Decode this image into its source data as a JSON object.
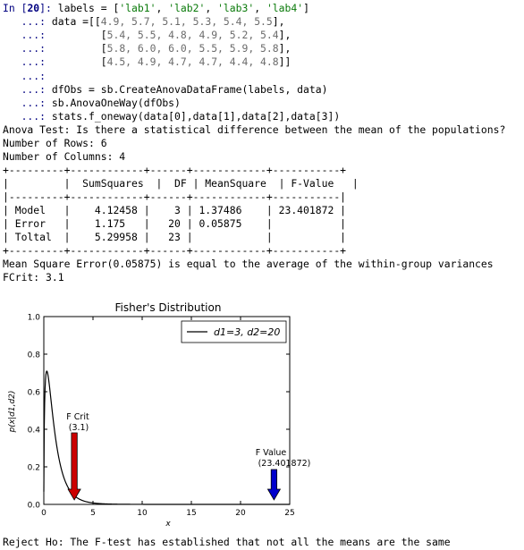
{
  "cell": {
    "prompt": "In [",
    "prompt_num": "20",
    "prompt_end": "]: ",
    "cont": "   ...: ",
    "code": {
      "l1_a": "labels = [",
      "l1_s1": "'lab1'",
      "l1_s2": "'lab2'",
      "l1_s3": "'lab3'",
      "l1_s4": "'lab4'",
      "l1_end": "]",
      "l2_a": "data =[[",
      "l2_nums": "4.9, 5.7, 5.1, 5.3, 5.4, 5.5",
      "l2_end": "],",
      "l3_a": "        [",
      "l3_nums": "5.4, 5.5, 4.8, 4.9, 5.2, 5.4",
      "l3_end": "],",
      "l4_a": "        [",
      "l4_nums": "5.8, 6.0, 6.0, 5.5, 5.9, 5.8",
      "l4_end": "],",
      "l5_a": "        [",
      "l5_nums": "4.5, 4.9, 4.7, 4.7, 4.4, 4.8",
      "l5_end": "]]",
      "l7": "dfObs = sb.CreateAnovaDataFrame(labels, data)",
      "l8": "sb.AnovaOneWay(dfObs)",
      "l9": "stats.f_oneway(data[0],data[1],data[2],data[3])"
    }
  },
  "output": {
    "test_title": "Anova Test: Is there a statistical difference between the mean of the populations?",
    "rows": "Number of Rows: 6",
    "cols": "Number of Columns: 4",
    "table_border": "+---------+------------+------+------------+-----------+",
    "table_header": "|         |  SumSquares  |  DF | MeanSquare  | F-Value   |",
    "table_sep": "|---------+------------+------+------------+-----------|",
    "row1": "| Model   |    4.12458 |    3 | 1.37486    | 23.401872 |",
    "row2": "| Error   |    1.175   |   20 | 0.05875    |           |",
    "row3": "| Toltal  |    5.29958 |   23 |            |           |",
    "mse": "Mean Square Error(0.05875) is equal to the average of the within-group variances",
    "fcrit": "FCrit: 3.1",
    "reject": "Reject Ho: The F-test has established that not all the means are the same"
  },
  "chart_data": {
    "type": "line",
    "title": "Fisher's Distribution",
    "xlabel": "x",
    "ylabel": "p(x|d1,d2)",
    "xlim": [
      0,
      25
    ],
    "ylim": [
      0,
      1.0
    ],
    "xticks": [
      "0",
      "5",
      "10",
      "15",
      "20",
      "25"
    ],
    "yticks": [
      "0.0",
      "0.2",
      "0.4",
      "0.6",
      "0.8",
      "1.0"
    ],
    "legend": "d1=3, d2=20",
    "legend_position": "top-right",
    "series": [
      {
        "name": "d1=3, d2=20",
        "d1": 3,
        "d2": 20
      }
    ],
    "annotations": [
      {
        "text_line1": "F Crit",
        "text_line2": "(3.1)",
        "x": 3.1,
        "arrow_color": "#cc0000"
      },
      {
        "text_line1": "F Value",
        "text_line2": "(23.401872)",
        "x": 23.401872,
        "arrow_color": "#0000cc"
      }
    ]
  }
}
